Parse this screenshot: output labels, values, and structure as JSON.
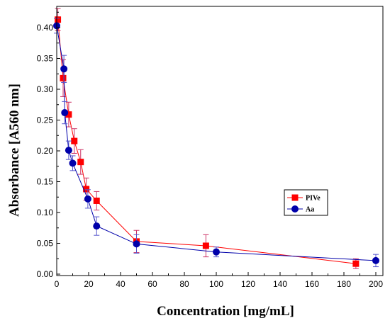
{
  "chart_data": {
    "type": "line",
    "xlabel": "Concentration [mg/mL]",
    "ylabel": "Absorbance [A560 nm]",
    "xlim": [
      0,
      200
    ],
    "ylim": [
      0,
      0.43
    ],
    "xticks": [
      0,
      20,
      40,
      60,
      80,
      100,
      120,
      140,
      160,
      180,
      200
    ],
    "yticks": [
      "0.00",
      "0.05",
      "0.10",
      "0.15",
      "0.20",
      "0.25",
      "0.30",
      "0.35",
      "0.40"
    ],
    "grid": false,
    "legend_position": "right",
    "series": [
      {
        "name": "PIVe",
        "marker": "square",
        "color": "#ff0000",
        "error_color": "#cc3366",
        "x": [
          0.7,
          4,
          7.5,
          11,
          15,
          18.5,
          25,
          50,
          93.5,
          187.5
        ],
        "y": [
          0.413,
          0.318,
          0.259,
          0.216,
          0.182,
          0.138,
          0.119,
          0.053,
          0.046,
          0.017
        ],
        "err": [
          0.018,
          0.03,
          0.02,
          0.02,
          0.02,
          0.018,
          0.015,
          0.018,
          0.018,
          0.008
        ]
      },
      {
        "name": "Aa",
        "marker": "circle",
        "color": "#0000aa",
        "error_color": "#5555cc",
        "x": [
          0,
          4.5,
          5,
          7.5,
          10,
          19.5,
          25,
          50,
          100,
          200
        ],
        "y": [
          0.403,
          0.333,
          0.262,
          0.201,
          0.18,
          0.122,
          0.078,
          0.049,
          0.036,
          0.022
        ],
        "err": [
          0.012,
          0.022,
          0.018,
          0.015,
          0.012,
          0.015,
          0.015,
          0.015,
          0.008,
          0.01
        ]
      }
    ]
  }
}
